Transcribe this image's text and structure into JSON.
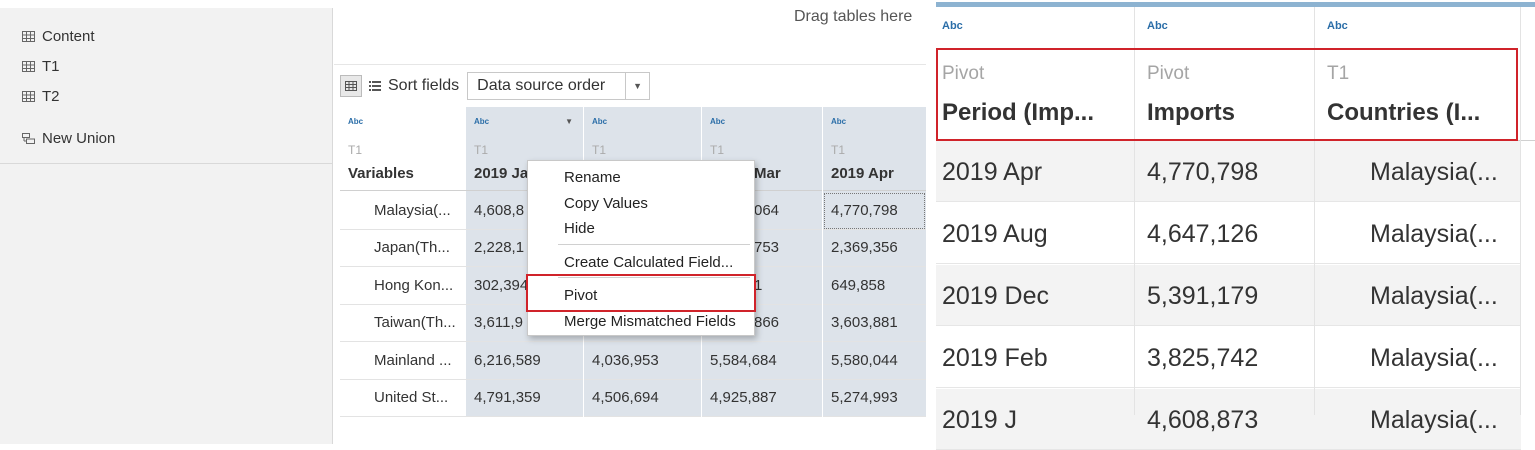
{
  "sidebar": {
    "items": [
      {
        "label": "Content",
        "icon": "table-icon"
      },
      {
        "label": "T1",
        "icon": "table-icon"
      },
      {
        "label": "T2",
        "icon": "table-icon"
      },
      {
        "label": "New Union",
        "icon": "union-icon"
      }
    ]
  },
  "canvas": {
    "drag_hint": "Drag tables here"
  },
  "toolbar": {
    "sort_label": "Sort fields",
    "sort_value": "Data source order"
  },
  "grid": {
    "columns": [
      {
        "type": "Abc",
        "source": "T1",
        "name": "Variables"
      },
      {
        "type": "Abc",
        "source": "T1",
        "name": "2019 Ja"
      },
      {
        "type": "Abc",
        "source": "T1",
        "name": ""
      },
      {
        "type": "Abc",
        "source": "T1",
        "name": "Mar"
      },
      {
        "type": "Abc",
        "source": "T1",
        "name": "2019 Apr"
      }
    ],
    "rows": [
      [
        "Malaysia(...",
        "4,608,8",
        "",
        "064",
        "4,770,798"
      ],
      [
        "Japan(Th...",
        "2,228,1",
        "",
        "753",
        "2,369,356"
      ],
      [
        "Hong Kon...",
        "302,394",
        "",
        "1",
        "649,858"
      ],
      [
        "Taiwan(Th...",
        "3,611,9",
        "",
        "866",
        "3,603,881"
      ],
      [
        "Mainland ...",
        "6,216,589",
        "4,036,953",
        "5,584,684",
        "5,580,044"
      ],
      [
        "United St...",
        "4,791,359",
        "4,506,694",
        "4,925,887",
        "5,274,993"
      ]
    ]
  },
  "context_menu": {
    "items": [
      "Rename",
      "Copy Values",
      "Hide",
      "Create Calculated Field...",
      "Pivot",
      "Merge Mismatched Fields"
    ]
  },
  "zoom_panel": {
    "columns": [
      {
        "type": "Abc",
        "source": "Pivot",
        "name": "Period (Imp..."
      },
      {
        "type": "Abc",
        "source": "Pivot",
        "name": "Imports"
      },
      {
        "type": "Abc",
        "source": "T1",
        "name": "Countries (I..."
      }
    ],
    "rows": [
      [
        "2019 Apr",
        "4,770,798",
        "Malaysia(..."
      ],
      [
        "2019 Aug",
        "4,647,126",
        "Malaysia(..."
      ],
      [
        "2019 Dec",
        "5,391,179",
        "Malaysia(..."
      ],
      [
        "2019 Feb",
        "3,825,742",
        "Malaysia(..."
      ],
      [
        "2019 J",
        "4,608,873",
        "Malaysia(..."
      ]
    ]
  },
  "colors": {
    "highlight": "#d0232a",
    "selected_column": "#dde3ea",
    "type_label": "#2b6ea8"
  }
}
